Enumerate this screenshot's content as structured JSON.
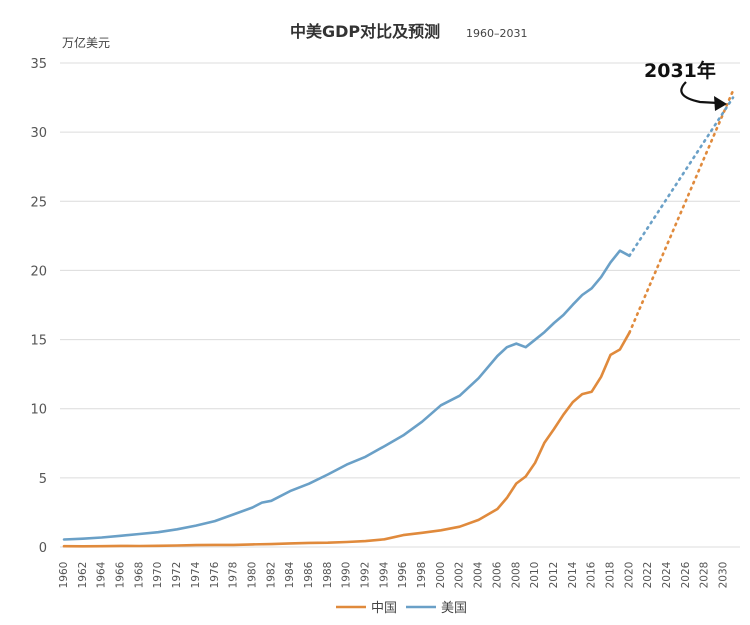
{
  "chart_data": {
    "type": "line",
    "title": "中美GDP对比及预测",
    "subtitle": "1960–2031",
    "ylabel": "万亿美元",
    "xlabel": "",
    "ylim": [
      0,
      35
    ],
    "xlim": [
      1960,
      2031
    ],
    "y_ticks": [
      0,
      5,
      10,
      15,
      20,
      25,
      30,
      35
    ],
    "x_ticks": [
      "1960",
      "1962",
      "1964",
      "1966",
      "1968",
      "1970",
      "1972",
      "1974",
      "1976",
      "1978",
      "1980",
      "1982",
      "1984",
      "1986",
      "1988",
      "1990",
      "1992",
      "1994",
      "1996",
      "1998",
      "2000",
      "2002",
      "2004",
      "2006",
      "2008",
      "2010",
      "2012",
      "2014",
      "2016",
      "2018",
      "2020",
      "2022",
      "2024",
      "2026",
      "2028",
      "2030"
    ],
    "grid": "horizontal",
    "legend_position": "bottom",
    "colors": {
      "china": "#e08a3c",
      "usa": "#6aa0c7"
    },
    "series": [
      {
        "name": "中国",
        "color": "#e08a3c",
        "x": [
          1960,
          1962,
          1964,
          1966,
          1968,
          1970,
          1972,
          1974,
          1976,
          1978,
          1980,
          1982,
          1984,
          1986,
          1988,
          1990,
          1992,
          1994,
          1996,
          1998,
          2000,
          2002,
          2004,
          2006,
          2007,
          2008,
          2009,
          2010,
          2011,
          2012,
          2013,
          2014,
          2015,
          2016,
          2017,
          2018,
          2019,
          2020
        ],
        "values": [
          0.06,
          0.05,
          0.06,
          0.08,
          0.07,
          0.09,
          0.11,
          0.14,
          0.15,
          0.15,
          0.19,
          0.21,
          0.26,
          0.3,
          0.31,
          0.36,
          0.43,
          0.56,
          0.86,
          1.03,
          1.21,
          1.47,
          1.96,
          2.75,
          3.55,
          4.59,
          5.1,
          6.09,
          7.55,
          8.53,
          9.57,
          10.48,
          11.06,
          11.23,
          12.31,
          13.89,
          14.28,
          15.5
        ]
      },
      {
        "name": "美国",
        "color": "#6aa0c7",
        "x": [
          1960,
          1962,
          1964,
          1966,
          1968,
          1970,
          1972,
          1974,
          1976,
          1978,
          1980,
          1981,
          1982,
          1984,
          1986,
          1988,
          1990,
          1992,
          1994,
          1996,
          1998,
          2000,
          2002,
          2004,
          2006,
          2007,
          2008,
          2009,
          2010,
          2011,
          2012,
          2013,
          2014,
          2015,
          2016,
          2017,
          2018,
          2019,
          2020
        ],
        "values": [
          0.54,
          0.6,
          0.69,
          0.81,
          0.94,
          1.07,
          1.28,
          1.55,
          1.87,
          2.36,
          2.86,
          3.21,
          3.34,
          4.04,
          4.58,
          5.24,
          5.96,
          6.52,
          7.29,
          8.07,
          9.06,
          10.25,
          10.94,
          12.21,
          13.81,
          14.45,
          14.71,
          14.45,
          14.99,
          15.54,
          16.2,
          16.78,
          17.52,
          18.22,
          18.71,
          19.52,
          20.58,
          21.43,
          21.06
        ]
      }
    ],
    "projection": [
      {
        "name": "中国",
        "x": [
          2020,
          2031
        ],
        "values": [
          15.5,
          33.0
        ]
      },
      {
        "name": "美国",
        "x": [
          2020,
          2031
        ],
        "values": [
          21.06,
          32.5
        ]
      }
    ],
    "annotation": {
      "text": "2031年"
    }
  }
}
